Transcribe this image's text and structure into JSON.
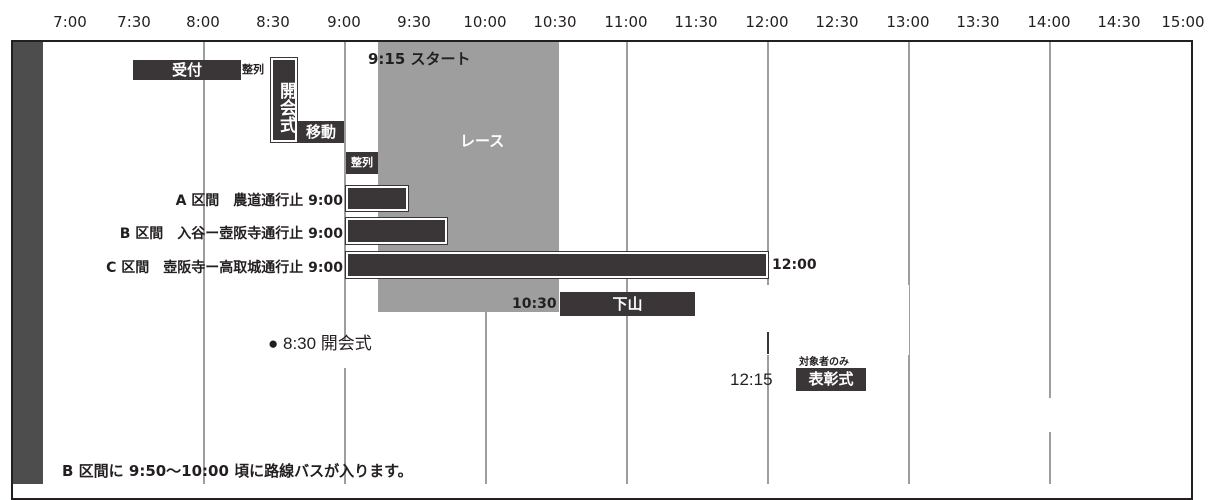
{
  "time_axis": [
    "7:00",
    "7:30",
    "8:00",
    "8:30",
    "9:00",
    "9:30",
    "10:00",
    "10:30",
    "11:00",
    "11:30",
    "12:00",
    "12:30",
    "13:00",
    "13:30",
    "14:00",
    "14:30",
    "15:00"
  ],
  "start_label": "9:15 スタート",
  "race_label": "レース",
  "reception_label": "受付",
  "lineup1_label": "整列",
  "opening_bar_label": "開会式",
  "move_label": "移動",
  "lineup2_label": "整列",
  "sections": [
    {
      "label": "A 区間　農道通行止 9:00"
    },
    {
      "label": "B 区間　入谷ー壺阪寺通行止 9:00"
    },
    {
      "label": "C 区間　壺阪寺ー高取城通行止 9:00",
      "end": "12:00"
    }
  ],
  "descent": {
    "start": "10:30",
    "label": "下山"
  },
  "opening_note": "● 8:30 開会式",
  "award": {
    "time": "12:15",
    "label": "表彰式",
    "note": "対象者のみ"
  },
  "footer_note": "B 区間に 9:50〜10:00 頃に路線バスが入ります。"
}
